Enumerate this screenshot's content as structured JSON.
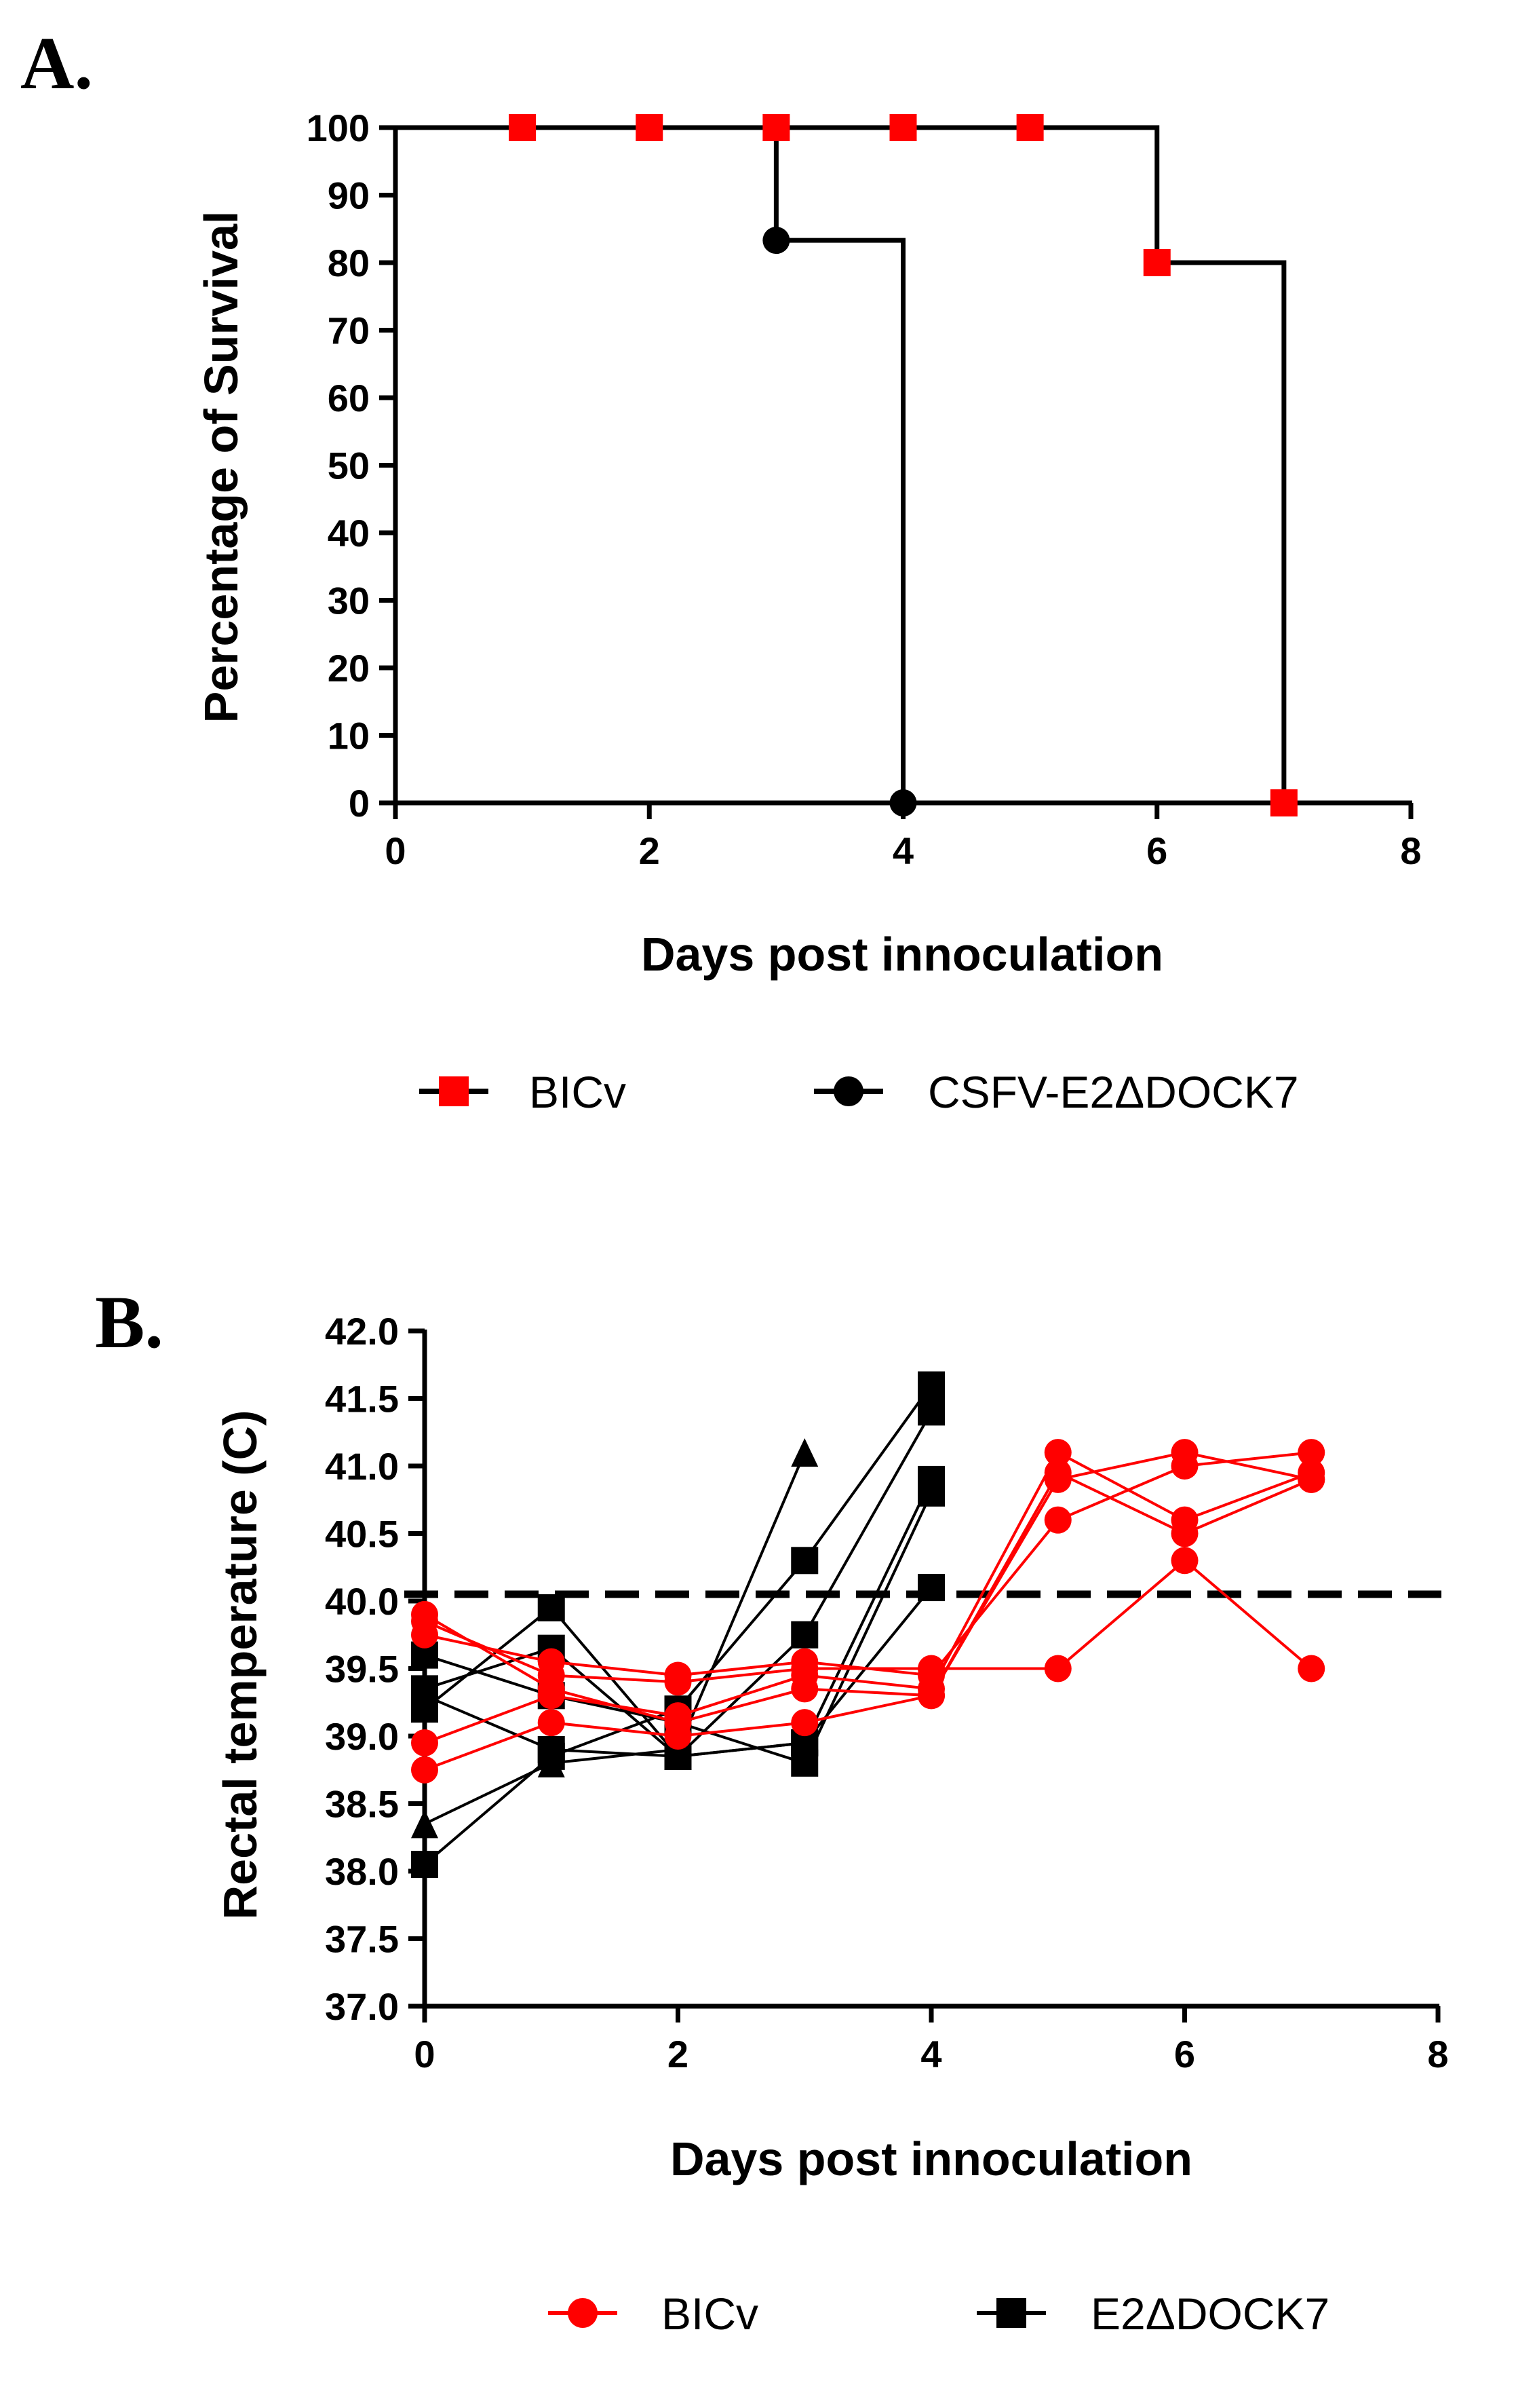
{
  "chart_data": [
    {
      "panel": "A.",
      "type": "line",
      "subtype": "step",
      "xlabel": "Days post innoculation",
      "ylabel": "Percentage of Survival",
      "xlim": [
        0,
        8
      ],
      "ylim": [
        0,
        100
      ],
      "xticks": [
        0,
        2,
        4,
        6,
        8
      ],
      "yticks": [
        0,
        10,
        20,
        30,
        40,
        50,
        60,
        70,
        80,
        90,
        100
      ],
      "legend_position": "bottom",
      "series": [
        {
          "name": "BICv",
          "color": "#ff0000",
          "marker": "square",
          "steps": [
            [
              0,
              100
            ],
            [
              6,
              100
            ],
            [
              6,
              80
            ],
            [
              7,
              80
            ],
            [
              7,
              0
            ],
            [
              8,
              0
            ]
          ],
          "markers": [
            [
              1,
              100
            ],
            [
              2,
              100
            ],
            [
              3,
              100
            ],
            [
              4,
              100
            ],
            [
              5,
              100
            ],
            [
              6,
              80
            ],
            [
              7,
              0
            ]
          ]
        },
        {
          "name": "CSFV-E2ΔDOCK7",
          "color": "#000000",
          "marker": "circle",
          "steps": [
            [
              0,
              100
            ],
            [
              3,
              100
            ],
            [
              3,
              83.3
            ],
            [
              4,
              83.3
            ],
            [
              4,
              0
            ],
            [
              8,
              0
            ]
          ],
          "markers": [
            [
              3,
              83.3
            ],
            [
              4,
              0
            ]
          ]
        }
      ]
    },
    {
      "panel": "B.",
      "type": "line",
      "xlabel": "Days post innoculation",
      "ylabel": "Rectal temperature (C)",
      "xlim": [
        0,
        8
      ],
      "ylim": [
        37.0,
        42.0
      ],
      "xticks": [
        0,
        2,
        4,
        6,
        8
      ],
      "yticks": [
        37.0,
        37.5,
        38.0,
        38.5,
        39.0,
        39.5,
        40.0,
        40.5,
        41.0,
        41.5,
        42.0
      ],
      "threshold": 40.05,
      "legend_position": "bottom",
      "series": [
        {
          "name": "BICv",
          "color": "#ff0000",
          "marker": "circle",
          "animals": [
            {
              "x": [
                0,
                1,
                2,
                3,
                4,
                5,
                6,
                7
              ],
              "y": [
                39.85,
                39.45,
                39.4,
                39.5,
                39.5,
                39.5,
                40.3,
                39.5
              ]
            },
            {
              "x": [
                0,
                1,
                2,
                3,
                4,
                5,
                6,
                7
              ],
              "y": [
                39.75,
                39.55,
                39.45,
                39.55,
                39.45,
                40.6,
                41.0,
                41.1
              ]
            },
            {
              "x": [
                0,
                1,
                2,
                3,
                4,
                5,
                6,
                7
              ],
              "y": [
                39.9,
                39.35,
                39.1,
                39.35,
                39.3,
                40.95,
                40.5,
                40.9
              ]
            },
            {
              "x": [
                0,
                1,
                2,
                3,
                4,
                5,
                6,
                7
              ],
              "y": [
                38.95,
                39.3,
                39.15,
                39.45,
                39.35,
                41.1,
                40.6,
                40.95
              ]
            },
            {
              "x": [
                0,
                1,
                2,
                3,
                4,
                5,
                6,
                7
              ],
              "y": [
                38.75,
                39.1,
                39.0,
                39.1,
                39.3,
                40.9,
                41.1,
                40.9
              ]
            }
          ]
        },
        {
          "name": "E2ΔDOCK7",
          "color": "#000000",
          "marker": "square",
          "animals": [
            {
              "x": [
                0,
                1,
                2,
                3
              ],
              "y": [
                38.35,
                38.8,
                38.9,
                41.1
              ],
              "marker": "triangle"
            },
            {
              "x": [
                0,
                1,
                2,
                3,
                4
              ],
              "y": [
                38.05,
                38.85,
                39.2,
                40.3,
                41.6
              ]
            },
            {
              "x": [
                0,
                1,
                2,
                3,
                4
              ],
              "y": [
                39.2,
                39.95,
                38.85,
                39.75,
                41.4
              ]
            },
            {
              "x": [
                0,
                1,
                2,
                3,
                4
              ],
              "y": [
                39.35,
                39.65,
                38.85,
                38.95,
                40.9
              ]
            },
            {
              "x": [
                0,
                1,
                2,
                3,
                4
              ],
              "y": [
                39.6,
                39.3,
                39.1,
                38.8,
                40.8
              ]
            },
            {
              "x": [
                0,
                1,
                2,
                3,
                4
              ],
              "y": [
                39.3,
                38.9,
                38.85,
                38.95,
                40.1
              ]
            }
          ]
        }
      ]
    }
  ]
}
